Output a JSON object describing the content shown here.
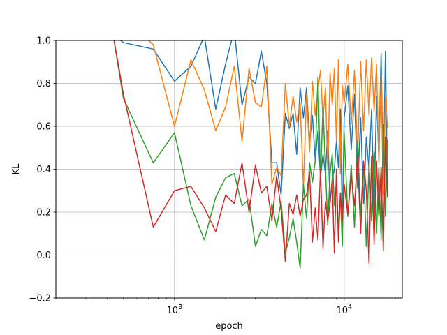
{
  "chart_data": {
    "type": "line",
    "title": "",
    "xlabel": "epoch",
    "ylabel": "KL",
    "xscale": "log",
    "xlim": [
      200,
      22000
    ],
    "ylim": [
      -0.2,
      1.0
    ],
    "grid": true,
    "legend": "none",
    "x_ticks": [
      {
        "value": 1000,
        "base": "10",
        "exp": "3"
      },
      {
        "value": 10000,
        "base": "10",
        "exp": "4"
      }
    ],
    "y_ticks": [
      -0.2,
      0.0,
      0.2,
      0.4,
      0.6,
      0.8,
      1.0
    ],
    "y_tick_labels": [
      "−0.2",
      "0.0",
      "0.2",
      "0.4",
      "0.6",
      "0.8",
      "1.0"
    ],
    "series": [
      {
        "color": "#1f77b4",
        "x": [
          400,
          500,
          750,
          1000,
          1250,
          1500,
          1750,
          2000,
          2250,
          2500,
          2750,
          3000,
          3250,
          3500,
          3750,
          4000,
          4250,
          4500,
          4750,
          5000,
          5250,
          5500,
          5750,
          6000,
          6250,
          6500,
          6750,
          7000,
          7250,
          7500,
          7750,
          8000,
          8250,
          8500,
          8750,
          9000,
          9250,
          9500,
          9750,
          10000,
          10500,
          11000,
          11500,
          12000,
          12500,
          13000,
          13500,
          14000,
          14500,
          15000,
          15500,
          16000,
          16500,
          17000,
          17500,
          18000
        ],
        "y": [
          1.05,
          0.99,
          0.96,
          0.81,
          0.88,
          1.02,
          0.68,
          0.89,
          1.05,
          0.7,
          0.83,
          0.8,
          0.95,
          0.8,
          0.43,
          0.43,
          0.28,
          0.66,
          0.59,
          0.66,
          0.47,
          0.78,
          0.64,
          0.78,
          0.53,
          0.65,
          0.44,
          0.58,
          0.36,
          0.47,
          0.38,
          0.58,
          0.24,
          0.35,
          0.4,
          0.53,
          0.41,
          0.68,
          0.15,
          0.64,
          0.79,
          0.49,
          0.75,
          0.31,
          0.64,
          0.24,
          0.55,
          0.4,
          0.68,
          0.2,
          0.74,
          0.46,
          0.94,
          0.32,
          0.95,
          0.28
        ]
      },
      {
        "color": "#ff7f0e",
        "x": [
          600,
          750,
          1000,
          1250,
          1500,
          1750,
          2000,
          2250,
          2500,
          2750,
          3000,
          3250,
          3500,
          3750,
          4000,
          4250,
          4500,
          4750,
          5000,
          5250,
          5500,
          5750,
          6000,
          6250,
          6500,
          6750,
          7000,
          7250,
          7500,
          7750,
          8000,
          8250,
          8500,
          8750,
          9000,
          9250,
          9500,
          9750,
          10000,
          10500,
          11000,
          11500,
          12000,
          12500,
          13000,
          13500,
          14000,
          14500,
          15000,
          15500,
          16000,
          16500,
          17000,
          17500,
          18000
        ],
        "y": [
          1.05,
          0.98,
          0.6,
          0.91,
          0.77,
          0.58,
          0.69,
          0.88,
          0.53,
          0.87,
          0.71,
          0.69,
          0.88,
          0.33,
          0.41,
          0.37,
          0.8,
          0.6,
          0.74,
          0.62,
          0.71,
          0.32,
          0.75,
          0.48,
          0.81,
          0.65,
          0.77,
          0.86,
          0.63,
          0.78,
          0.4,
          0.85,
          0.7,
          0.87,
          0.53,
          0.91,
          0.38,
          0.79,
          0.71,
          0.89,
          0.61,
          0.86,
          0.46,
          0.9,
          0.58,
          0.91,
          0.65,
          0.92,
          0.67,
          0.89,
          0.43,
          0.84,
          0.28,
          0.74,
          0.59
        ]
      },
      {
        "color": "#2ca02c",
        "x": [
          430,
          500,
          750,
          1000,
          1250,
          1500,
          1750,
          2000,
          2250,
          2500,
          2750,
          3000,
          3250,
          3500,
          3750,
          4000,
          4250,
          4500,
          4750,
          5000,
          5250,
          5500,
          5750,
          6000,
          6250,
          6500,
          6750,
          7000,
          7250,
          7500,
          7750,
          8000,
          8250,
          8500,
          8750,
          9000,
          9250,
          9500,
          9750,
          10000,
          10500,
          11000,
          11500,
          12000,
          12500,
          13000,
          13500,
          14000,
          14500,
          15000,
          15500,
          16000,
          16500,
          17000,
          17500,
          18000
        ],
        "y": [
          1.05,
          0.73,
          0.43,
          0.57,
          0.23,
          0.07,
          0.27,
          0.36,
          0.38,
          0.23,
          0.26,
          0.04,
          0.12,
          0.09,
          0.24,
          0.13,
          0.25,
          0.01,
          0.08,
          0.17,
          0.06,
          -0.06,
          0.33,
          0.17,
          0.43,
          0.34,
          0.44,
          0.83,
          0.36,
          0.69,
          0.41,
          0.14,
          0.38,
          0.47,
          0.23,
          0.34,
          0.12,
          0.29,
          0.04,
          0.57,
          0.18,
          0.42,
          0.13,
          0.53,
          0.18,
          0.43,
          0.04,
          0.43,
          0.16,
          0.48,
          0.1,
          0.41,
          0.07,
          0.61,
          0.18,
          0.54
        ]
      },
      {
        "color": "#d62728",
        "x": [
          430,
          500,
          750,
          1000,
          1250,
          1500,
          1750,
          2000,
          2250,
          2500,
          2750,
          3000,
          3250,
          3500,
          3750,
          4000,
          4250,
          4500,
          4750,
          5000,
          5250,
          5500,
          5750,
          6000,
          6250,
          6500,
          6750,
          7000,
          7250,
          7500,
          7750,
          8000,
          8250,
          8500,
          8750,
          9000,
          9250,
          9500,
          9750,
          10000,
          10500,
          11000,
          11500,
          12000,
          12500,
          13000,
          13500,
          14000,
          14500,
          15000,
          15500,
          16000,
          16500,
          17000,
          17500,
          18000
        ],
        "y": [
          1.05,
          0.75,
          0.13,
          0.3,
          0.32,
          0.22,
          0.11,
          0.28,
          0.24,
          0.43,
          0.2,
          0.42,
          0.29,
          0.32,
          0.16,
          0.37,
          0.21,
          -0.03,
          0.24,
          0.19,
          0.28,
          0.18,
          0.26,
          0.28,
          0.39,
          0.06,
          0.22,
          0.07,
          0.4,
          0.03,
          0.25,
          0.16,
          0.24,
          0.35,
          0.01,
          0.4,
          0.06,
          0.29,
          0.16,
          0.33,
          0.19,
          0.37,
          0.23,
          0.46,
          0.1,
          0.44,
          0.3,
          -0.04,
          0.46,
          0.05,
          0.44,
          0.18,
          0.41,
          0.02,
          0.55,
          0.27
        ]
      }
    ]
  }
}
